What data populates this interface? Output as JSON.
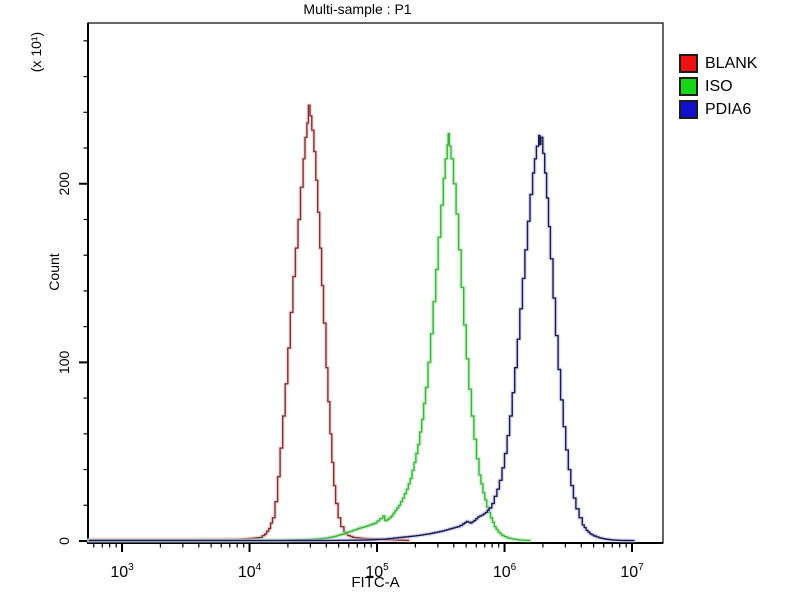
{
  "title": "Multi-sample : P1",
  "chart_data": {
    "type": "line",
    "subtype": "flow-cytometry-histogram-overlay",
    "title": "Multi-sample : P1",
    "xlabel": "FITC-A",
    "ylabel": "Count",
    "ylabel_scale_note": "(x 10¹)",
    "x_scale": "log10",
    "x_tick_exponents": [
      3,
      4,
      5,
      6,
      7
    ],
    "x_range_log10": [
      2.733,
      7.243
    ],
    "y_ticks": [
      0,
      100,
      200
    ],
    "y_minor_tick_step": 20,
    "ylim": [
      0,
      290
    ],
    "grid": false,
    "legend_position": "top-right-outside",
    "axis_color": "#000000",
    "background_color": "#ffffff",
    "series": [
      {
        "name": "BLANK",
        "legend_color": "#ee1111",
        "line_color": "#7a3333",
        "glow_color": "#f2bcbc",
        "points_log10x_count": [
          [
            2.74,
            0.8
          ],
          [
            3.2,
            0.8
          ],
          [
            3.6,
            0.8
          ],
          [
            3.9,
            1
          ],
          [
            4.02,
            1.5
          ],
          [
            4.08,
            2
          ],
          [
            4.12,
            4
          ],
          [
            4.15,
            7
          ],
          [
            4.18,
            13
          ],
          [
            4.2,
            22
          ],
          [
            4.22,
            36
          ],
          [
            4.24,
            52
          ],
          [
            4.26,
            70
          ],
          [
            4.28,
            88
          ],
          [
            4.3,
            108
          ],
          [
            4.32,
            128
          ],
          [
            4.34,
            148
          ],
          [
            4.36,
            164
          ],
          [
            4.38,
            180
          ],
          [
            4.4,
            198
          ],
          [
            4.42,
            214
          ],
          [
            4.435,
            226
          ],
          [
            4.45,
            234
          ],
          [
            4.462,
            244
          ],
          [
            4.474,
            238
          ],
          [
            4.488,
            230
          ],
          [
            4.505,
            218
          ],
          [
            4.52,
            202
          ],
          [
            4.535,
            184
          ],
          [
            4.55,
            164
          ],
          [
            4.565,
            143
          ],
          [
            4.58,
            122
          ],
          [
            4.6,
            97
          ],
          [
            4.615,
            78
          ],
          [
            4.63,
            60
          ],
          [
            4.645,
            44
          ],
          [
            4.66,
            31
          ],
          [
            4.675,
            21
          ],
          [
            4.695,
            13
          ],
          [
            4.715,
            8
          ],
          [
            4.74,
            5
          ],
          [
            4.77,
            3
          ],
          [
            4.81,
            2
          ],
          [
            4.87,
            1.5
          ],
          [
            4.95,
            1.2
          ],
          [
            5.05,
            0.8
          ],
          [
            5.15,
            0.5
          ],
          [
            5.25,
            0.3
          ]
        ]
      },
      {
        "name": "ISO",
        "legend_color": "#17d517",
        "line_color": "#3cb43c",
        "glow_color": "#a9eaa9",
        "points_log10x_count": [
          [
            2.74,
            0.3
          ],
          [
            3.5,
            0.3
          ],
          [
            4.2,
            0.4
          ],
          [
            4.45,
            0.8
          ],
          [
            4.58,
            1.5
          ],
          [
            4.66,
            2.5
          ],
          [
            4.73,
            4
          ],
          [
            4.79,
            5.5
          ],
          [
            4.85,
            7
          ],
          [
            4.9,
            8
          ],
          [
            4.94,
            9
          ],
          [
            4.98,
            10
          ],
          [
            5.02,
            12.5
          ],
          [
            5.045,
            14
          ],
          [
            5.06,
            11.5
          ],
          [
            5.08,
            12
          ],
          [
            5.11,
            14
          ],
          [
            5.14,
            17
          ],
          [
            5.17,
            20
          ],
          [
            5.2,
            24
          ],
          [
            5.23,
            29
          ],
          [
            5.26,
            35
          ],
          [
            5.29,
            44
          ],
          [
            5.32,
            54
          ],
          [
            5.35,
            68
          ],
          [
            5.38,
            86
          ],
          [
            5.4,
            100
          ],
          [
            5.42,
            116
          ],
          [
            5.44,
            134
          ],
          [
            5.46,
            152
          ],
          [
            5.48,
            170
          ],
          [
            5.5,
            188
          ],
          [
            5.52,
            203
          ],
          [
            5.535,
            214
          ],
          [
            5.55,
            222
          ],
          [
            5.558,
            228
          ],
          [
            5.568,
            221
          ],
          [
            5.58,
            214
          ],
          [
            5.6,
            200
          ],
          [
            5.62,
            183
          ],
          [
            5.64,
            163
          ],
          [
            5.66,
            142
          ],
          [
            5.68,
            121
          ],
          [
            5.7,
            102
          ],
          [
            5.72,
            85
          ],
          [
            5.74,
            70
          ],
          [
            5.76,
            57
          ],
          [
            5.78,
            46
          ],
          [
            5.8,
            37
          ],
          [
            5.83,
            27
          ],
          [
            5.86,
            19
          ],
          [
            5.89,
            13
          ],
          [
            5.92,
            8
          ],
          [
            5.95,
            5
          ],
          [
            5.98,
            3
          ],
          [
            6.02,
            1.8
          ],
          [
            6.07,
            1
          ],
          [
            6.12,
            0.5
          ],
          [
            6.2,
            0.3
          ]
        ]
      },
      {
        "name": "PDIA6",
        "legend_color": "#1111cd",
        "line_color": "#1a1a52",
        "glow_color": "#c0c0e8",
        "points_log10x_count": [
          [
            2.74,
            0.2
          ],
          [
            4.0,
            0.2
          ],
          [
            4.6,
            0.3
          ],
          [
            4.9,
            0.5
          ],
          [
            5.05,
            1
          ],
          [
            5.15,
            1.8
          ],
          [
            5.25,
            2.5
          ],
          [
            5.33,
            3.2
          ],
          [
            5.4,
            4
          ],
          [
            5.47,
            5
          ],
          [
            5.53,
            6
          ],
          [
            5.58,
            7
          ],
          [
            5.63,
            8
          ],
          [
            5.67,
            9.5
          ],
          [
            5.7,
            11
          ],
          [
            5.73,
            10
          ],
          [
            5.76,
            11.5
          ],
          [
            5.79,
            13.5
          ],
          [
            5.82,
            14.5
          ],
          [
            5.85,
            16
          ],
          [
            5.88,
            18.5
          ],
          [
            5.9,
            21
          ],
          [
            5.92,
            25
          ],
          [
            5.94,
            29
          ],
          [
            5.96,
            34
          ],
          [
            5.98,
            41
          ],
          [
            6.0,
            49
          ],
          [
            6.02,
            59
          ],
          [
            6.04,
            70
          ],
          [
            6.06,
            83
          ],
          [
            6.08,
            97
          ],
          [
            6.1,
            113
          ],
          [
            6.12,
            130
          ],
          [
            6.14,
            147
          ],
          [
            6.16,
            163
          ],
          [
            6.18,
            179
          ],
          [
            6.2,
            194
          ],
          [
            6.22,
            206
          ],
          [
            6.235,
            214
          ],
          [
            6.25,
            221
          ],
          [
            6.268,
            227
          ],
          [
            6.278,
            222
          ],
          [
            6.285,
            226
          ],
          [
            6.3,
            217
          ],
          [
            6.315,
            206
          ],
          [
            6.33,
            192
          ],
          [
            6.345,
            176
          ],
          [
            6.36,
            158
          ],
          [
            6.38,
            136
          ],
          [
            6.4,
            115
          ],
          [
            6.42,
            96
          ],
          [
            6.44,
            79
          ],
          [
            6.46,
            64
          ],
          [
            6.48,
            51
          ],
          [
            6.5,
            40
          ],
          [
            6.52,
            31
          ],
          [
            6.54,
            24
          ],
          [
            6.56,
            18
          ],
          [
            6.585,
            13
          ],
          [
            6.61,
            9
          ],
          [
            6.64,
            6
          ],
          [
            6.67,
            4
          ],
          [
            6.7,
            2.8
          ],
          [
            6.74,
            1.8
          ],
          [
            6.79,
            1
          ],
          [
            6.85,
            0.5
          ],
          [
            6.93,
            0.3
          ],
          [
            7.02,
            0.2
          ]
        ]
      }
    ]
  }
}
